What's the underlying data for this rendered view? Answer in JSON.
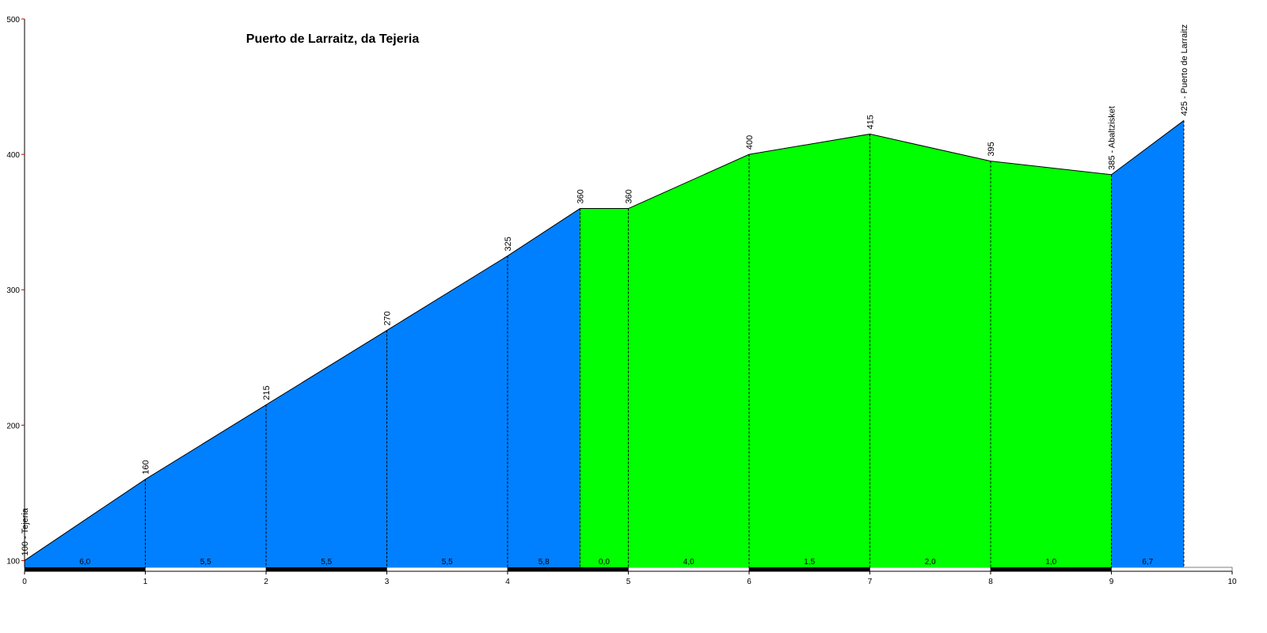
{
  "chart_data": {
    "type": "area",
    "title": "Puerto de Larraitz, da Tejeria",
    "x": [
      0,
      1,
      2,
      3,
      4,
      4.6,
      5,
      6,
      7,
      8,
      9,
      9.6
    ],
    "xlim": [
      0,
      10
    ],
    "xticks": [
      0,
      1,
      2,
      3,
      4,
      5,
      6,
      7,
      8,
      9,
      10
    ],
    "ylim": [
      95,
      500
    ],
    "yticks": [
      100,
      200,
      300,
      400,
      500
    ],
    "series": [
      {
        "values": [
          100,
          160,
          215,
          270,
          325,
          360,
          360,
          400,
          415,
          395,
          385,
          425
        ],
        "value_labels": [
          "100 - Tejeria",
          "160",
          "215",
          "270",
          "325",
          "360",
          "360",
          "400",
          "415",
          "395",
          "385 - Abaltzisket",
          "425 - Puerto de Larraitz"
        ]
      }
    ],
    "segments": {
      "values": [
        6.0,
        5.5,
        5.5,
        5.5,
        5.8,
        0.0,
        4.0,
        1.5,
        2.0,
        1.0,
        6.7
      ],
      "value_labels": [
        "6,0",
        "5,5",
        "5,5",
        "5,5",
        "5,8",
        "0,0",
        "4,0",
        "1,5",
        "2,0",
        "1,0",
        "6,7"
      ],
      "colors": [
        "#0080ff",
        "#0080ff",
        "#0080ff",
        "#0080ff",
        "#0080ff",
        "#00ff00",
        "#00ff00",
        "#00ff00",
        "#00ff00",
        "#00ff00",
        "#0080ff"
      ]
    }
  }
}
